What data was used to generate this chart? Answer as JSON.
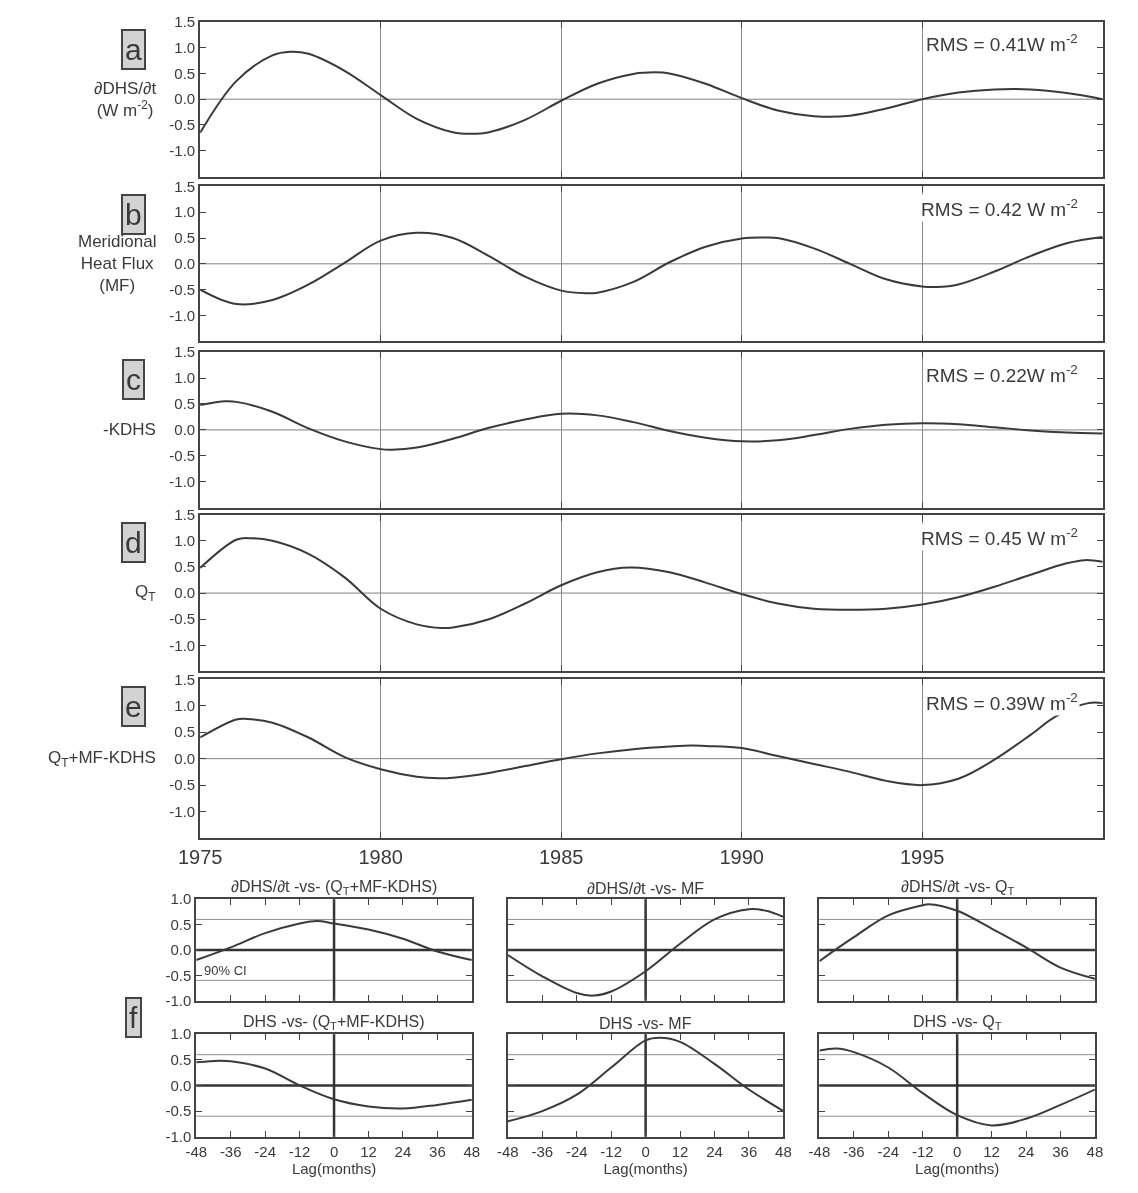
{
  "chart_data": [
    {
      "type": "line",
      "ylabel": "∂DHS/∂t\n(W m$^{-2}$)",
      "annotations": [
        "a",
        "RMS = 0.41W m$^{-2}$"
      ],
      "color": "#3a3a3a",
      "x": [
        1975,
        1976,
        1977,
        1977.5,
        1978,
        1979,
        1980,
        1981,
        1982,
        1982.5,
        1983,
        1984,
        1985,
        1986,
        1987,
        1987.6,
        1988,
        1989,
        1990,
        1991,
        1992,
        1993,
        1994,
        1995,
        1996,
        1997,
        1998,
        1999,
        2000
      ],
      "values": [
        -0.65,
        0.35,
        0.85,
        0.92,
        0.88,
        0.55,
        0.08,
        -0.38,
        -0.64,
        -0.67,
        -0.64,
        -0.4,
        -0.03,
        0.3,
        0.49,
        0.52,
        0.5,
        0.3,
        0.02,
        -0.22,
        -0.33,
        -0.32,
        -0.18,
        0.0,
        0.13,
        0.19,
        0.19,
        0.12,
        0.0
      ],
      "xlim": [
        1975,
        2000
      ],
      "xticks": [
        {
          "value": 1975,
          "label": null
        },
        {
          "value": 1980,
          "label": null
        },
        {
          "value": 1985,
          "label": null
        },
        {
          "value": 1990,
          "label": null
        },
        {
          "value": 1995,
          "label": null
        }
      ],
      "ylim": [
        -1.5,
        1.5
      ],
      "yticks": [
        {
          "value": -1,
          "label": "-1.0"
        },
        {
          "value": -0.5,
          "label": "-0.5"
        },
        {
          "value": 0,
          "label": "0.0"
        },
        {
          "value": 0.5,
          "label": "0.5"
        },
        {
          "value": 1,
          "label": "1.0"
        },
        {
          "value": 1.5,
          "label": "1.5"
        }
      ],
      "grid": "x",
      "tick_labels": "y",
      "ref_lines": [
        {
          "axis": "y",
          "value": 0,
          "color": "#808080"
        }
      ]
    },
    {
      "type": "line",
      "ylabel": "Meridional\nHeat Flux\n(MF)",
      "annotations": [
        "b",
        "RMS = 0.42 W m$^{-2}$"
      ],
      "color": "#3a3a3a",
      "x": [
        1975,
        1976,
        1977,
        1978,
        1979,
        1980,
        1981,
        1982,
        1983,
        1984,
        1985,
        1985.7,
        1986,
        1987,
        1988,
        1989,
        1990,
        1990.6,
        1991,
        1992,
        1993,
        1994,
        1995,
        1995.4,
        1996,
        1997,
        1998,
        1999,
        2000
      ],
      "values": [
        -0.5,
        -0.78,
        -0.7,
        -0.4,
        0.02,
        0.45,
        0.6,
        0.5,
        0.15,
        -0.25,
        -0.52,
        -0.57,
        -0.56,
        -0.35,
        0.03,
        0.33,
        0.49,
        0.51,
        0.5,
        0.3,
        0.0,
        -0.3,
        -0.44,
        -0.45,
        -0.4,
        -0.15,
        0.15,
        0.4,
        0.52
      ],
      "xlim": [
        1975,
        2000
      ],
      "xticks": [
        {
          "value": 1975,
          "label": null
        },
        {
          "value": 1980,
          "label": null
        },
        {
          "value": 1985,
          "label": null
        },
        {
          "value": 1990,
          "label": null
        },
        {
          "value": 1995,
          "label": null
        }
      ],
      "ylim": [
        -1.5,
        1.5
      ],
      "yticks": [
        {
          "value": -1,
          "label": "-1.0"
        },
        {
          "value": -0.5,
          "label": "-0.5"
        },
        {
          "value": 0,
          "label": "0.0"
        },
        {
          "value": 0.5,
          "label": "0.5"
        },
        {
          "value": 1,
          "label": "1.0"
        },
        {
          "value": 1.5,
          "label": "1.5"
        }
      ],
      "grid": "x",
      "tick_labels": "y",
      "ref_lines": [
        {
          "axis": "y",
          "value": 0,
          "color": "#808080"
        }
      ]
    },
    {
      "type": "line",
      "ylabel": "-KDHS",
      "annotations": [
        "c",
        "RMS = 0.22W m$^{-2}$"
      ],
      "color": "#3a3a3a",
      "x": [
        1975,
        1975.7,
        1976,
        1977,
        1978,
        1979,
        1980,
        1980.3,
        1981,
        1982,
        1983,
        1984,
        1985,
        1986,
        1987,
        1988,
        1989,
        1990,
        1991,
        1992,
        1993,
        1994,
        1995,
        1996,
        1997,
        1998,
        1999,
        2000
      ],
      "values": [
        0.48,
        0.55,
        0.54,
        0.35,
        0.03,
        -0.22,
        -0.37,
        -0.38,
        -0.34,
        -0.17,
        0.04,
        0.2,
        0.31,
        0.28,
        0.15,
        -0.02,
        -0.15,
        -0.22,
        -0.2,
        -0.1,
        0.02,
        0.1,
        0.13,
        0.11,
        0.05,
        -0.01,
        -0.05,
        -0.07
      ],
      "xlim": [
        1975,
        2000
      ],
      "xticks": [
        {
          "value": 1975,
          "label": null
        },
        {
          "value": 1980,
          "label": null
        },
        {
          "value": 1985,
          "label": null
        },
        {
          "value": 1990,
          "label": null
        },
        {
          "value": 1995,
          "label": null
        }
      ],
      "ylim": [
        -1.5,
        1.5
      ],
      "yticks": [
        {
          "value": -1,
          "label": "-1.0"
        },
        {
          "value": -0.5,
          "label": "-0.5"
        },
        {
          "value": 0,
          "label": "0.0"
        },
        {
          "value": 0.5,
          "label": "0.5"
        },
        {
          "value": 1,
          "label": "1.0"
        },
        {
          "value": 1.5,
          "label": "1.5"
        }
      ],
      "grid": "x",
      "tick_labels": "y",
      "ref_lines": [
        {
          "axis": "y",
          "value": 0,
          "color": "#808080"
        }
      ]
    },
    {
      "type": "line",
      "ylabel": "Q$_{T}$",
      "annotations": [
        "d",
        "RMS = 0.45 W m$^{-2}$"
      ],
      "color": "#3a3a3a",
      "x": [
        1975,
        1976,
        1976.4,
        1977,
        1978,
        1979,
        1980,
        1981,
        1981.7,
        1982,
        1983,
        1984,
        1985,
        1986,
        1986.9,
        1988,
        1989,
        1990,
        1991,
        1992,
        1993,
        1994,
        1995,
        1996,
        1997,
        1998,
        1999,
        1999.5,
        2000
      ],
      "values": [
        0.48,
        1.02,
        1.05,
        1.0,
        0.75,
        0.3,
        -0.3,
        -0.6,
        -0.67,
        -0.66,
        -0.5,
        -0.2,
        0.15,
        0.4,
        0.49,
        0.4,
        0.2,
        -0.02,
        -0.2,
        -0.3,
        -0.32,
        -0.3,
        -0.22,
        -0.08,
        0.12,
        0.35,
        0.57,
        0.63,
        0.6
      ],
      "xlim": [
        1975,
        2000
      ],
      "xticks": [
        {
          "value": 1975,
          "label": null
        },
        {
          "value": 1980,
          "label": null
        },
        {
          "value": 1985,
          "label": null
        },
        {
          "value": 1990,
          "label": null
        },
        {
          "value": 1995,
          "label": null
        }
      ],
      "ylim": [
        -1.5,
        1.5
      ],
      "yticks": [
        {
          "value": -1,
          "label": "-1.0"
        },
        {
          "value": -0.5,
          "label": "-0.5"
        },
        {
          "value": 0,
          "label": "0.0"
        },
        {
          "value": 0.5,
          "label": "0.5"
        },
        {
          "value": 1,
          "label": "1.0"
        },
        {
          "value": 1.5,
          "label": "1.5"
        }
      ],
      "grid": "x",
      "tick_labels": "y",
      "ref_lines": [
        {
          "axis": "y",
          "value": 0,
          "color": "#808080"
        }
      ]
    },
    {
      "type": "line",
      "ylabel": "Q$_{T}$+MF-KDHS",
      "annotations": [
        "e",
        "RMS = 0.39W m$^{-2}$"
      ],
      "color": "#3a3a3a",
      "x": [
        1975,
        1976,
        1976.3,
        1977,
        1978,
        1979,
        1980,
        1981,
        1981.6,
        1982,
        1983,
        1984,
        1985,
        1986,
        1987,
        1988,
        1988.6,
        1989,
        1990,
        1991,
        1992,
        1993,
        1994,
        1995,
        1996,
        1997,
        1998,
        1998.7,
        1999.6,
        2000
      ],
      "values": [
        0.4,
        0.74,
        0.75,
        0.68,
        0.4,
        0.03,
        -0.2,
        -0.34,
        -0.37,
        -0.36,
        -0.27,
        -0.14,
        -0.01,
        0.1,
        0.18,
        0.23,
        0.25,
        0.24,
        0.2,
        0.05,
        -0.1,
        -0.25,
        -0.42,
        -0.5,
        -0.38,
        -0.02,
        0.45,
        0.8,
        1.05,
        1.05
      ],
      "xlim": [
        1975,
        2000
      ],
      "xticks": [
        1975,
        1980,
        1985,
        1990,
        1995
      ],
      "ylim": [
        -1.5,
        1.5
      ],
      "yticks": [
        {
          "value": -1,
          "label": "-1.0"
        },
        {
          "value": -0.5,
          "label": "-0.5"
        },
        {
          "value": 0,
          "label": "0.0"
        },
        {
          "value": 0.5,
          "label": "0.5"
        },
        {
          "value": 1,
          "label": "1.0"
        },
        {
          "value": 1.5,
          "label": "1.5"
        }
      ],
      "grid": "x",
      "ref_lines": [
        {
          "axis": "y",
          "value": 0,
          "color": "#808080"
        }
      ]
    },
    {
      "type": "line",
      "title": "∂DHS/∂t -vs- (Q$_{T}$+MF-KDHS)",
      "annotations": [
        "f"
      ],
      "color": "#3a3a3a",
      "x": [
        -48,
        -36,
        -24,
        -12,
        -6,
        0,
        12,
        24,
        36,
        48
      ],
      "values": [
        -0.2,
        0.05,
        0.33,
        0.52,
        0.57,
        0.52,
        0.4,
        0.22,
        -0.03,
        -0.2
      ],
      "xlim": [
        -48,
        48
      ],
      "xticks": [
        {
          "value": -48,
          "label": null
        },
        {
          "value": -36,
          "label": null
        },
        {
          "value": -24,
          "label": null
        },
        {
          "value": -12,
          "label": null
        },
        {
          "value": 0,
          "label": null
        },
        {
          "value": 12,
          "label": null
        },
        {
          "value": 24,
          "label": null
        },
        {
          "value": 36,
          "label": null
        },
        {
          "value": 48,
          "label": null
        }
      ],
      "ylim": [
        -1,
        1
      ],
      "yticks": [
        {
          "value": -1,
          "label": "-1.0"
        },
        {
          "value": -0.5,
          "label": "-0.5"
        },
        {
          "value": 0,
          "label": "0.0"
        },
        {
          "value": 0.5,
          "label": "0.5"
        },
        {
          "value": 1,
          "label": "1.0"
        }
      ],
      "tick_labels": "y",
      "ref_lines": [
        {
          "axis": "y",
          "value": 0.6,
          "color": "#909090"
        },
        {
          "axis": "y",
          "value": -0.6,
          "color": "#909090",
          "label": "90% CI"
        },
        {
          "axis": "y",
          "value": 0,
          "color": "#333333"
        },
        {
          "axis": "x",
          "value": 0,
          "color": "#333333"
        }
      ]
    },
    {
      "type": "line",
      "title": "∂DHS/∂t -vs- MF",
      "color": "#3a3a3a",
      "x": [
        -48,
        -36,
        -24,
        -18,
        -12,
        0,
        12,
        24,
        36,
        42,
        48
      ],
      "values": [
        -0.1,
        -0.52,
        -0.85,
        -0.9,
        -0.82,
        -0.42,
        0.12,
        0.6,
        0.8,
        0.77,
        0.65
      ],
      "xlim": [
        -48,
        48
      ],
      "xticks": [
        {
          "value": -48,
          "label": null
        },
        {
          "value": -36,
          "label": null
        },
        {
          "value": -24,
          "label": null
        },
        {
          "value": -12,
          "label": null
        },
        {
          "value": 0,
          "label": null
        },
        {
          "value": 12,
          "label": null
        },
        {
          "value": 24,
          "label": null
        },
        {
          "value": 36,
          "label": null
        },
        {
          "value": 48,
          "label": null
        }
      ],
      "ylim": [
        -1,
        1
      ],
      "yticks": [
        {
          "value": -1,
          "label": null
        },
        {
          "value": -0.5,
          "label": null
        },
        {
          "value": 0,
          "label": null
        },
        {
          "value": 0.5,
          "label": null
        },
        {
          "value": 1,
          "label": null
        }
      ],
      "tick_labels": false,
      "ref_lines": [
        {
          "axis": "y",
          "value": 0.6,
          "color": "#909090"
        },
        {
          "axis": "y",
          "value": -0.6,
          "color": "#909090"
        },
        {
          "axis": "y",
          "value": 0,
          "color": "#333333"
        },
        {
          "axis": "x",
          "value": 0,
          "color": "#333333"
        }
      ]
    },
    {
      "type": "line",
      "title": "∂DHS/∂t -vs- Q$_{T}$",
      "color": "#3a3a3a",
      "x": [
        -48,
        -36,
        -24,
        -12,
        -10,
        0,
        12,
        24,
        36,
        48
      ],
      "values": [
        -0.22,
        0.25,
        0.68,
        0.88,
        0.9,
        0.77,
        0.42,
        0.05,
        -0.35,
        -0.57
      ],
      "xlim": [
        -48,
        48
      ],
      "xticks": [
        {
          "value": -48,
          "label": null
        },
        {
          "value": -36,
          "label": null
        },
        {
          "value": -24,
          "label": null
        },
        {
          "value": -12,
          "label": null
        },
        {
          "value": 0,
          "label": null
        },
        {
          "value": 12,
          "label": null
        },
        {
          "value": 24,
          "label": null
        },
        {
          "value": 36,
          "label": null
        },
        {
          "value": 48,
          "label": null
        }
      ],
      "ylim": [
        -1,
        1
      ],
      "yticks": [
        {
          "value": -1,
          "label": null
        },
        {
          "value": -0.5,
          "label": null
        },
        {
          "value": 0,
          "label": null
        },
        {
          "value": 0.5,
          "label": null
        },
        {
          "value": 1,
          "label": null
        }
      ],
      "tick_labels": false,
      "ref_lines": [
        {
          "axis": "y",
          "value": 0.6,
          "color": "#909090"
        },
        {
          "axis": "y",
          "value": -0.6,
          "color": "#909090"
        },
        {
          "axis": "y",
          "value": 0,
          "color": "#333333"
        },
        {
          "axis": "x",
          "value": 0,
          "color": "#333333"
        }
      ]
    },
    {
      "type": "line",
      "title": "DHS -vs- (Q$_{T}$+MF-KDHS)",
      "xlabel": "Lag(months)",
      "color": "#3a3a3a",
      "x": [
        -48,
        -40,
        -36,
        -24,
        -12,
        0,
        12,
        24,
        36,
        48
      ],
      "values": [
        0.45,
        0.48,
        0.47,
        0.33,
        0.0,
        -0.27,
        -0.41,
        -0.45,
        -0.38,
        -0.28
      ],
      "xlim": [
        -48,
        48
      ],
      "xticks": [
        -48,
        -36,
        -24,
        -12,
        0,
        12,
        24,
        36,
        48
      ],
      "ylim": [
        -1,
        1
      ],
      "yticks": [
        {
          "value": -1,
          "label": "-1.0"
        },
        {
          "value": -0.5,
          "label": "-0.5"
        },
        {
          "value": 0,
          "label": "0.0"
        },
        {
          "value": 0.5,
          "label": "0.5"
        },
        {
          "value": 1,
          "label": "1.0"
        }
      ],
      "ref_lines": [
        {
          "axis": "y",
          "value": 0.6,
          "color": "#909090"
        },
        {
          "axis": "y",
          "value": -0.6,
          "color": "#909090"
        },
        {
          "axis": "y",
          "value": 0,
          "color": "#333333"
        },
        {
          "axis": "x",
          "value": 0,
          "color": "#333333"
        }
      ]
    },
    {
      "type": "line",
      "title": "DHS -vs- MF",
      "xlabel": "Lag(months)",
      "color": "#3a3a3a",
      "x": [
        -48,
        -36,
        -24,
        -12,
        0,
        5,
        12,
        24,
        36,
        48
      ],
      "values": [
        -0.7,
        -0.5,
        -0.18,
        0.35,
        0.88,
        0.93,
        0.85,
        0.42,
        -0.08,
        -0.5
      ],
      "xlim": [
        -48,
        48
      ],
      "xticks": [
        -48,
        -36,
        -24,
        -12,
        0,
        12,
        24,
        36,
        48
      ],
      "ylim": [
        -1,
        1
      ],
      "yticks": [
        {
          "value": -1,
          "label": null
        },
        {
          "value": -0.5,
          "label": null
        },
        {
          "value": 0,
          "label": null
        },
        {
          "value": 0.5,
          "label": null
        },
        {
          "value": 1,
          "label": null
        }
      ],
      "tick_labels": "x",
      "ref_lines": [
        {
          "axis": "y",
          "value": 0.6,
          "color": "#909090"
        },
        {
          "axis": "y",
          "value": -0.6,
          "color": "#909090"
        },
        {
          "axis": "y",
          "value": 0,
          "color": "#333333"
        },
        {
          "axis": "x",
          "value": 0,
          "color": "#333333"
        }
      ]
    },
    {
      "type": "line",
      "title": "DHS -vs- Q$_{T}$",
      "xlabel": "Lag(months)",
      "color": "#3a3a3a",
      "x": [
        -48,
        -42,
        -36,
        -24,
        -12,
        0,
        12,
        24,
        36,
        48
      ],
      "values": [
        0.68,
        0.72,
        0.65,
        0.35,
        -0.15,
        -0.58,
        -0.78,
        -0.65,
        -0.38,
        -0.08
      ],
      "xlim": [
        -48,
        48
      ],
      "xticks": [
        -48,
        -36,
        -24,
        -12,
        0,
        12,
        24,
        36,
        48
      ],
      "ylim": [
        -1,
        1
      ],
      "yticks": [
        {
          "value": -1,
          "label": null
        },
        {
          "value": -0.5,
          "label": null
        },
        {
          "value": 0,
          "label": null
        },
        {
          "value": 0.5,
          "label": null
        },
        {
          "value": 1,
          "label": null
        }
      ],
      "tick_labels": "x",
      "ref_lines": [
        {
          "axis": "y",
          "value": 0.6,
          "color": "#909090"
        },
        {
          "axis": "y",
          "value": -0.6,
          "color": "#909090"
        },
        {
          "axis": "y",
          "value": 0,
          "color": "#333333"
        },
        {
          "axis": "x",
          "value": 0,
          "color": "#333333"
        }
      ]
    }
  ]
}
